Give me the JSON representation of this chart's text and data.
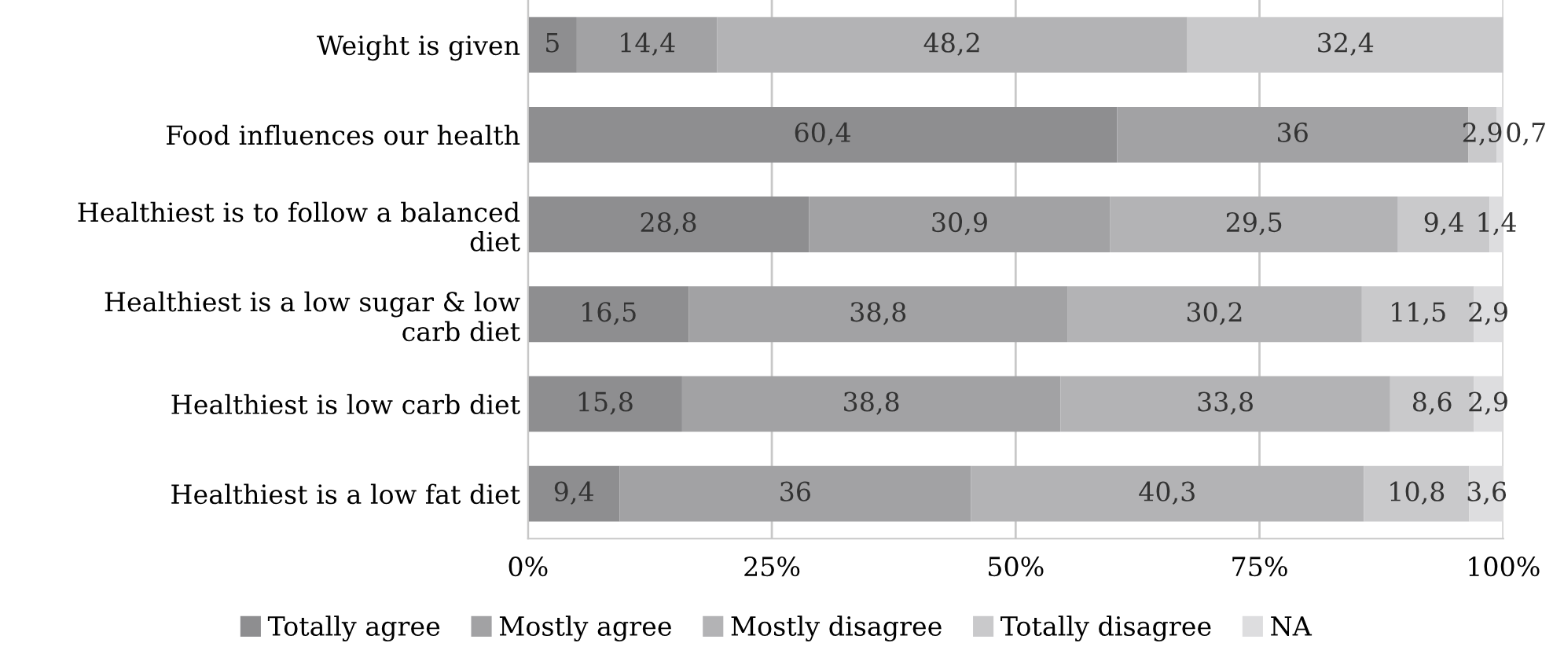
{
  "chart_data": {
    "type": "bar",
    "orientation": "horizontal",
    "stacked": true,
    "categories": [
      "Weight is given",
      "Food influences our health",
      "Healthiest is to follow a balanced diet",
      "Healthiest is a low sugar & low carb diet",
      "Healthiest is low carb diet",
      "Healthiest is a low fat diet"
    ],
    "series": [
      {
        "name": "Totally agree",
        "color": "#8e8e90",
        "values": [
          5,
          60.4,
          28.8,
          16.5,
          15.8,
          9.4
        ],
        "value_labels": [
          "5",
          "60,4",
          "28,8",
          "16,5",
          "15,8",
          "9,4"
        ]
      },
      {
        "name": "Mostly agree",
        "color": "#a2a2a4",
        "values": [
          14.4,
          36,
          30.9,
          38.8,
          38.8,
          36
        ],
        "value_labels": [
          "14,4",
          "36",
          "30,9",
          "38,8",
          "38,8",
          "36"
        ]
      },
      {
        "name": "Mostly disagree",
        "color": "#b3b3b5",
        "values": [
          48.2,
          null,
          29.5,
          30.2,
          33.8,
          40.3
        ],
        "value_labels": [
          "48,2",
          null,
          "29,5",
          "30,2",
          "33,8",
          "40,3"
        ]
      },
      {
        "name": "Totally disagree",
        "color": "#c9c9cb",
        "values": [
          32.4,
          2.9,
          9.4,
          11.5,
          8.6,
          10.8
        ],
        "value_labels": [
          "32,4",
          "2,9",
          "9,4",
          "11,5",
          "8,6",
          "10,8"
        ]
      },
      {
        "name": "NA",
        "color": "#dddddf",
        "values": [
          null,
          0.7,
          1.4,
          2.9,
          2.9,
          3.6
        ],
        "value_labels": [
          null,
          "0,7",
          "1,4",
          "2,9",
          "2,9",
          "3,6"
        ]
      }
    ],
    "xlim": [
      0,
      100
    ],
    "xticks": [
      {
        "value": 0,
        "label": "0%"
      },
      {
        "value": 25,
        "label": "25%"
      },
      {
        "value": 50,
        "label": "50%"
      },
      {
        "value": 75,
        "label": "75%"
      },
      {
        "value": 100,
        "label": "100%"
      }
    ],
    "grid": "x",
    "legend": "bottom"
  }
}
